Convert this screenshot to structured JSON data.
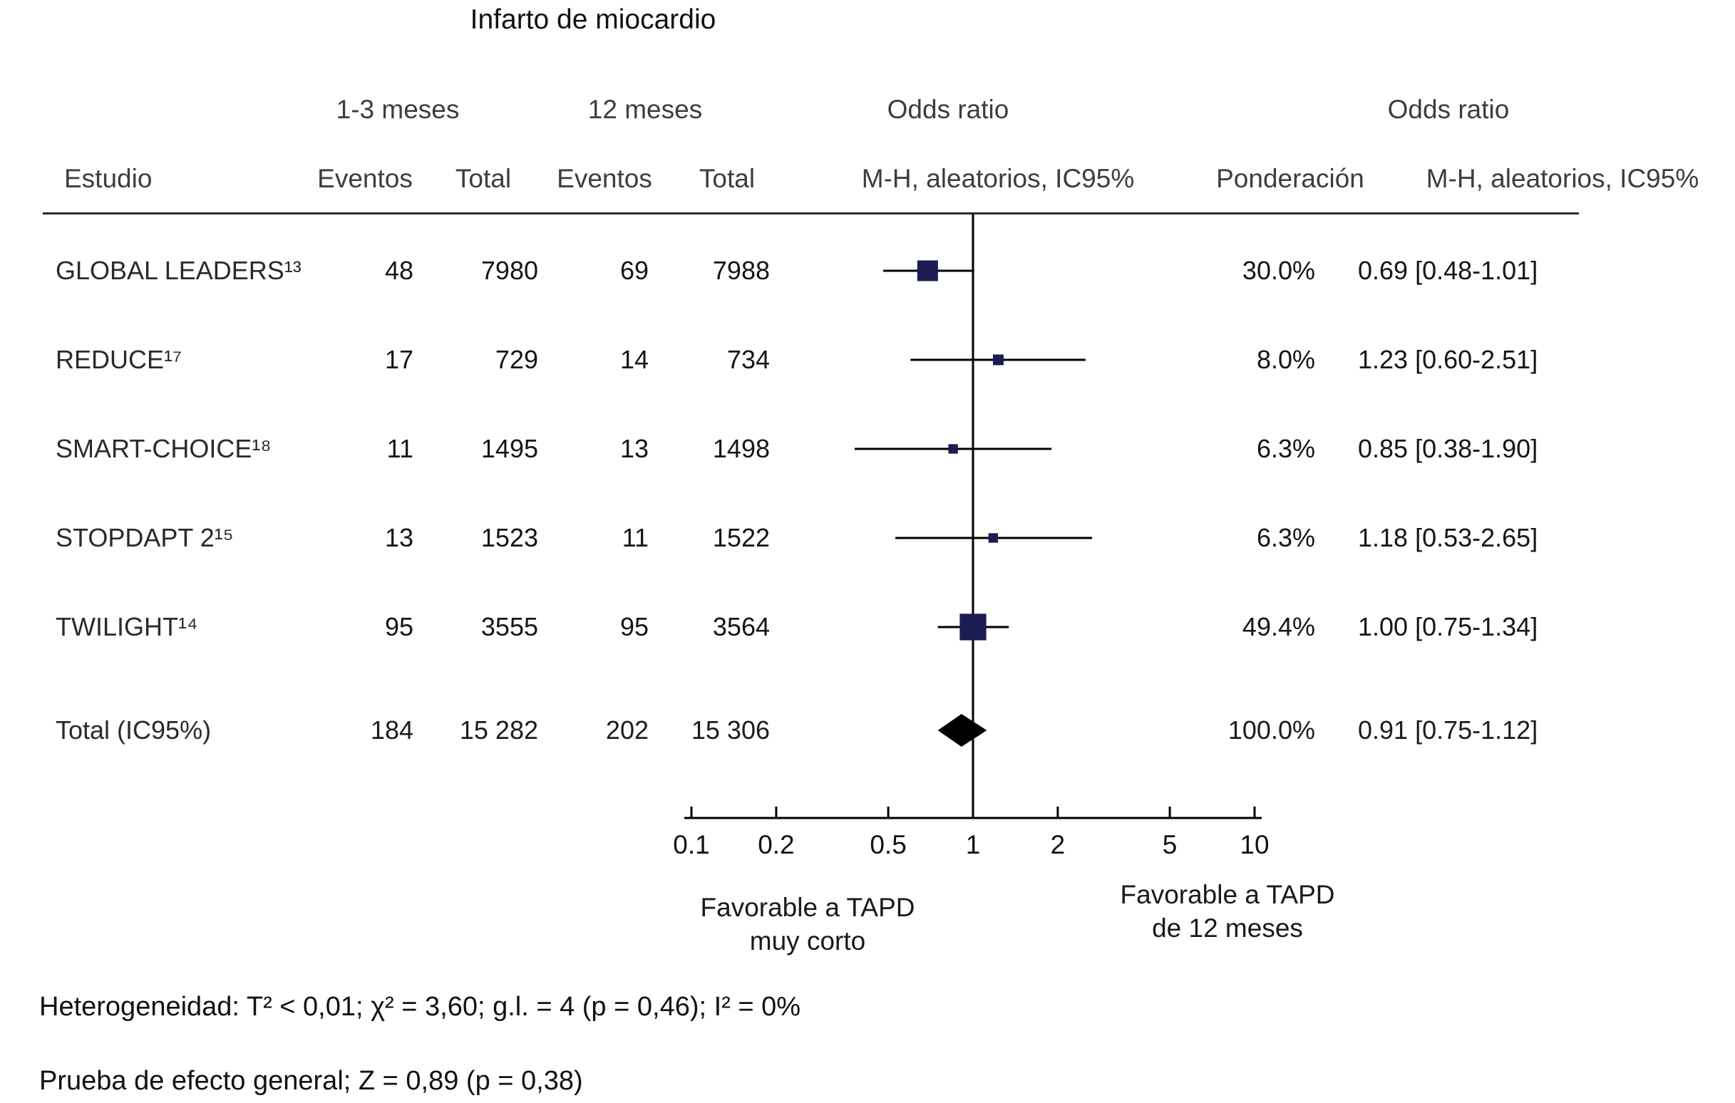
{
  "title": "Infarto de miocardio",
  "header": {
    "study": "Estudio",
    "group1": "1-3 meses",
    "group2": "12 meses",
    "events1": "Eventos",
    "total1": "Total",
    "events2": "Eventos",
    "total2": "Total",
    "or_plot_title": "Odds ratio",
    "or_plot_sub": "M-H, aleatorios, IC95%",
    "weight": "Ponderación",
    "or_text_title": "Odds ratio",
    "or_text_sub": "M-H, aleatorios, IC95%"
  },
  "chart_data": {
    "type": "forest",
    "x_scale": "log10",
    "x_range": [
      0.1,
      10
    ],
    "x_ticks": [
      0.1,
      0.2,
      0.5,
      1,
      2,
      5,
      10
    ],
    "x_tick_labels": [
      "0.1",
      "0.2",
      "0.5",
      "1",
      "2",
      "5",
      "10"
    ],
    "null_value": 1,
    "rows": [
      {
        "study": "GLOBAL LEADERS¹³",
        "events1": "48",
        "total1": "7980",
        "events2": "69",
        "total2": "7988",
        "weight": "30.0%",
        "weight_pct": 30.0,
        "or": 0.69,
        "ci_low": 0.48,
        "ci_high": 1.01,
        "or_label": "0.69 [0.48-1.01]"
      },
      {
        "study": "REDUCE¹⁷",
        "events1": "17",
        "total1": "729",
        "events2": "14",
        "total2": "734",
        "weight": "8.0%",
        "weight_pct": 8.0,
        "or": 1.23,
        "ci_low": 0.6,
        "ci_high": 2.51,
        "or_label": "1.23 [0.60-2.51]"
      },
      {
        "study": "SMART-CHOICE¹⁸",
        "events1": "11",
        "total1": "1495",
        "events2": "13",
        "total2": "1498",
        "weight": "6.3%",
        "weight_pct": 6.3,
        "or": 0.85,
        "ci_low": 0.38,
        "ci_high": 1.9,
        "or_label": "0.85 [0.38-1.90]"
      },
      {
        "study": "STOPDAPT 2¹⁵",
        "events1": "13",
        "total1": "1523",
        "events2": "11",
        "total2": "1522",
        "weight": "6.3%",
        "weight_pct": 6.3,
        "or": 1.18,
        "ci_low": 0.53,
        "ci_high": 2.65,
        "or_label": "1.18 [0.53-2.65]"
      },
      {
        "study": "TWILIGHT¹⁴",
        "events1": "95",
        "total1": "3555",
        "events2": "95",
        "total2": "3564",
        "weight": "49.4%",
        "weight_pct": 49.4,
        "or": 1.0,
        "ci_low": 0.75,
        "ci_high": 1.34,
        "or_label": "1.00 [0.75-1.34]"
      }
    ],
    "total": {
      "study": "Total (IC95%)",
      "events1": "184",
      "total1": "15 282",
      "events2": "202",
      "total2": "15 306",
      "weight": "100.0%",
      "weight_pct": 100.0,
      "or": 0.91,
      "ci_low": 0.75,
      "ci_high": 1.12,
      "or_label": "0.91 [0.75-1.12]"
    },
    "favors_left_lines": [
      "Favorable a TAPD",
      "muy corto"
    ],
    "favors_right_lines": [
      "Favorable a TAPD",
      "de 12 meses"
    ],
    "colors": {
      "marker": "#1c1c52",
      "diamond": "#000000",
      "line": "#000000",
      "axis": "#000000"
    }
  },
  "footer": {
    "heterogeneity": "Heterogeneidad: T² < 0,01; χ² = 3,60; g.l. = 4 (p = 0,46); I² = 0%",
    "overall_effect": "Prueba de efecto general; Z = 0,89 (p = 0,38)"
  }
}
